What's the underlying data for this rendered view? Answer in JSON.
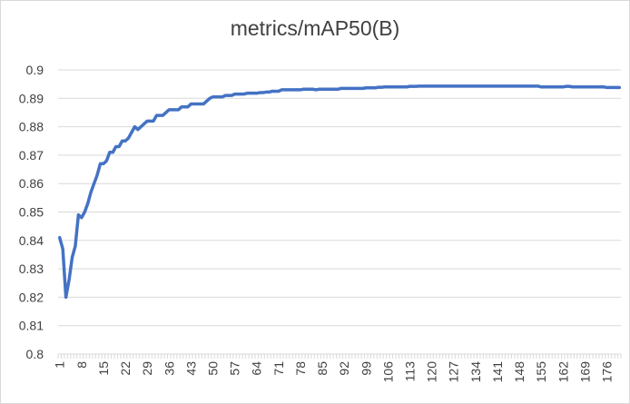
{
  "chart_data": {
    "type": "line",
    "title": "metrics/mAP50(B)",
    "xlabel": "",
    "ylabel": "",
    "ylim": [
      0.8,
      0.9
    ],
    "ytick_step": 0.01,
    "grid": true,
    "legend": "none",
    "line_color": "#4472c4",
    "x_start": 1,
    "x_end": 180,
    "x_tick_labels": [
      1,
      8,
      15,
      22,
      29,
      36,
      43,
      50,
      57,
      64,
      71,
      78,
      85,
      92,
      99,
      106,
      113,
      120,
      127,
      134,
      141,
      148,
      155,
      162,
      169,
      176
    ],
    "series": [
      {
        "values": [
          0.841,
          0.837,
          0.82,
          0.826,
          0.834,
          0.838,
          0.849,
          0.848,
          0.85,
          0.853,
          0.857,
          0.86,
          0.863,
          0.867,
          0.867,
          0.868,
          0.871,
          0.871,
          0.873,
          0.873,
          0.875,
          0.875,
          0.876,
          0.878,
          0.88,
          0.879,
          0.88,
          0.881,
          0.882,
          0.882,
          0.882,
          0.884,
          0.884,
          0.884,
          0.885,
          0.886,
          0.886,
          0.886,
          0.886,
          0.887,
          0.887,
          0.887,
          0.888,
          0.888,
          0.888,
          0.888,
          0.888,
          0.889,
          0.89,
          0.8905,
          0.8905,
          0.8905,
          0.8905,
          0.891,
          0.891,
          0.891,
          0.8915,
          0.8915,
          0.8915,
          0.8915,
          0.8918,
          0.8918,
          0.8918,
          0.8918,
          0.892,
          0.892,
          0.8922,
          0.8922,
          0.8925,
          0.8925,
          0.8925,
          0.893,
          0.893,
          0.893,
          0.893,
          0.893,
          0.893,
          0.893,
          0.8932,
          0.8932,
          0.8932,
          0.8932,
          0.893,
          0.8932,
          0.8932,
          0.8932,
          0.8932,
          0.8932,
          0.8932,
          0.8932,
          0.8935,
          0.8935,
          0.8935,
          0.8935,
          0.8935,
          0.8935,
          0.8935,
          0.8935,
          0.8937,
          0.8937,
          0.8937,
          0.8937,
          0.8939,
          0.8939,
          0.894,
          0.894,
          0.894,
          0.894,
          0.894,
          0.894,
          0.894,
          0.894,
          0.8942,
          0.8942,
          0.8942,
          0.8943,
          0.8943,
          0.8943,
          0.8943,
          0.8943,
          0.8943,
          0.8943,
          0.8943,
          0.8943,
          0.8943,
          0.8943,
          0.8943,
          0.8943,
          0.8943,
          0.8943,
          0.8943,
          0.8943,
          0.8943,
          0.8943,
          0.8943,
          0.8943,
          0.8943,
          0.8943,
          0.8943,
          0.8943,
          0.8943,
          0.8943,
          0.8943,
          0.8943,
          0.8943,
          0.8943,
          0.8943,
          0.8943,
          0.8943,
          0.8943,
          0.8943,
          0.8943,
          0.8943,
          0.8943,
          0.894,
          0.894,
          0.894,
          0.894,
          0.894,
          0.894,
          0.894,
          0.894,
          0.8942,
          0.8942,
          0.894,
          0.894,
          0.894,
          0.894,
          0.894,
          0.894,
          0.894,
          0.894,
          0.894,
          0.894,
          0.894,
          0.8938,
          0.8938,
          0.8938,
          0.8938,
          0.8938
        ]
      }
    ]
  }
}
